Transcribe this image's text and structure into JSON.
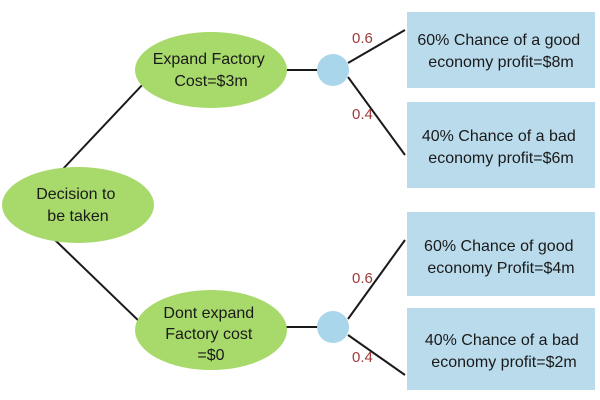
{
  "colors": {
    "ellipse_fill": "#a7d96b",
    "chance_node_fill": "#a9d6ea",
    "outcome_box_fill": "#b9dbec",
    "line": "#1a1a1a",
    "probability_text": "#a03a3a"
  },
  "decision": {
    "label_line1": "Decision to",
    "label_line2": "be taken"
  },
  "options": [
    {
      "label_line1": "Expand Factory",
      "label_line2": "Cost=$3m",
      "label_line3": "",
      "branches": [
        {
          "probability": "0.6",
          "outcome_line1": "60% Chance of a good",
          "outcome_line2": "economy profit=$8m"
        },
        {
          "probability": "0.4",
          "outcome_line1": "40% Chance of a bad",
          "outcome_line2": "economy profit=$6m"
        }
      ]
    },
    {
      "label_line1": "Dont expand",
      "label_line2": "Factory cost",
      "label_line3": "=$0",
      "branches": [
        {
          "probability": "0.6",
          "outcome_line1": "60% Chance of good",
          "outcome_line2": "economy Profit=$4m"
        },
        {
          "probability": "0.4",
          "outcome_line1": "40% Chance of a bad",
          "outcome_line2": "economy profit=$2m"
        }
      ]
    }
  ]
}
